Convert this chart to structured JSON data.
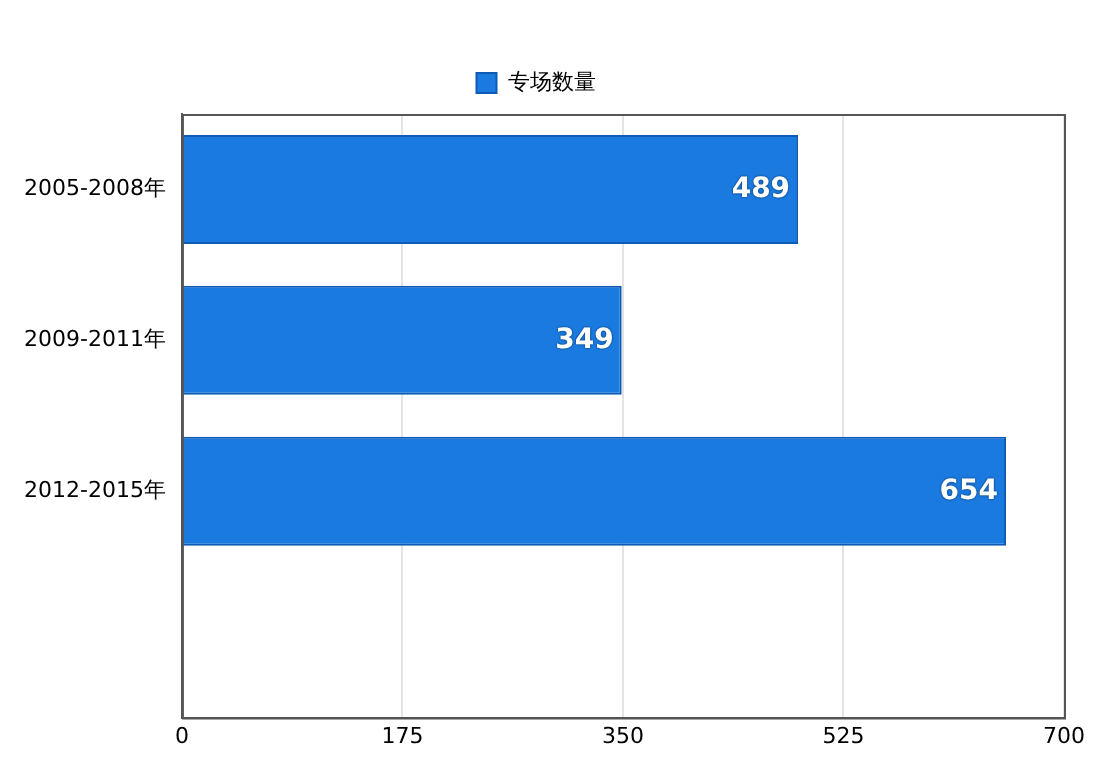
{
  "chart_data": {
    "type": "bar",
    "orientation": "horizontal",
    "categories": [
      "2005-2008年",
      "2009-2011年",
      "2012-2015年",
      null
    ],
    "series": [
      {
        "name": "专场数量",
        "color": "#1a7ae0",
        "values": [
          489,
          349,
          654,
          null
        ]
      }
    ],
    "xlim": [
      0,
      700
    ],
    "xticks": [
      0,
      175,
      350,
      525,
      700
    ],
    "grid": "x",
    "legend": "top",
    "data_labels": true
  }
}
